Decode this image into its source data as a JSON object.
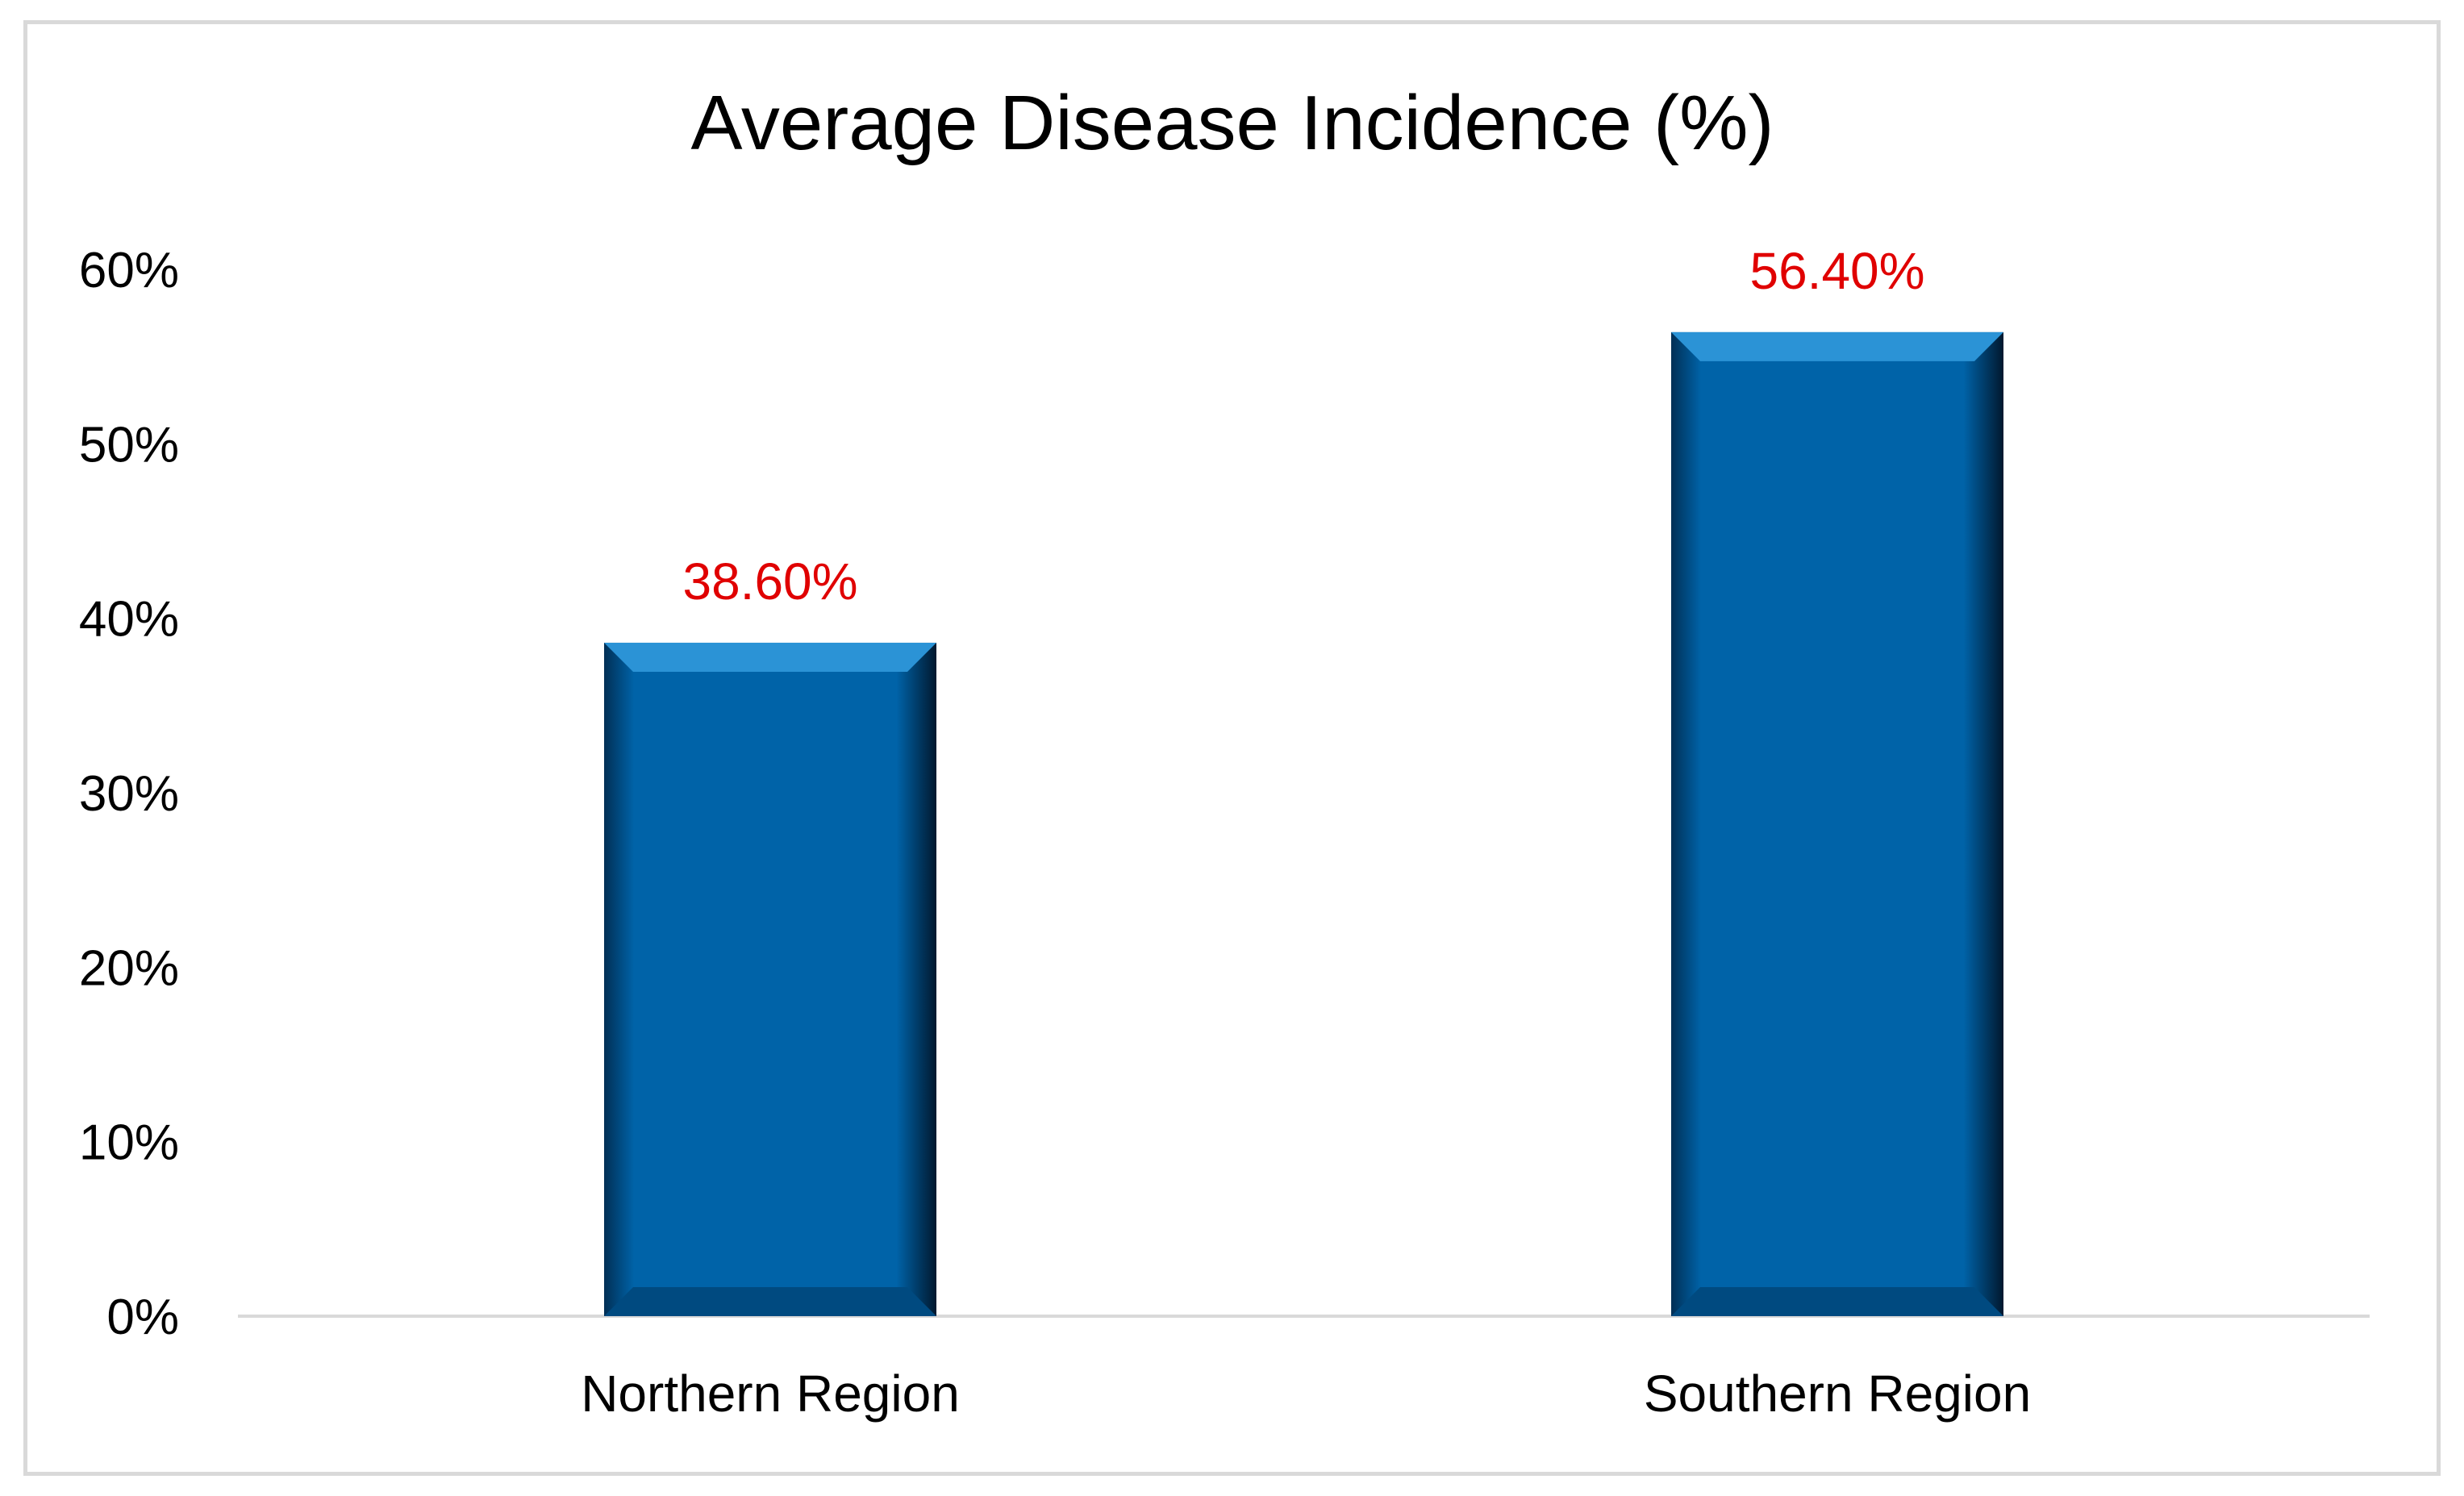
{
  "chart_data": {
    "type": "bar",
    "title": "Average Disease Incidence (%)",
    "categories": [
      "Northern Region",
      "Southern Region"
    ],
    "values": [
      38.6,
      56.4
    ],
    "data_labels": [
      "38.60%",
      "56.40%"
    ],
    "ylim": [
      0,
      60
    ],
    "yticks": [
      "0%",
      "10%",
      "20%",
      "30%",
      "40%",
      "50%",
      "60%"
    ],
    "ytick_values": [
      0,
      10,
      20,
      30,
      40,
      50,
      60
    ],
    "grid": false,
    "legend": "none"
  },
  "colors": {
    "bar_fill": "#0063a8",
    "bar_highlight": "#2b93d6",
    "bar_shadow": "#02223f",
    "data_label": "#e00000",
    "axis_line": "#d9d9d9"
  }
}
